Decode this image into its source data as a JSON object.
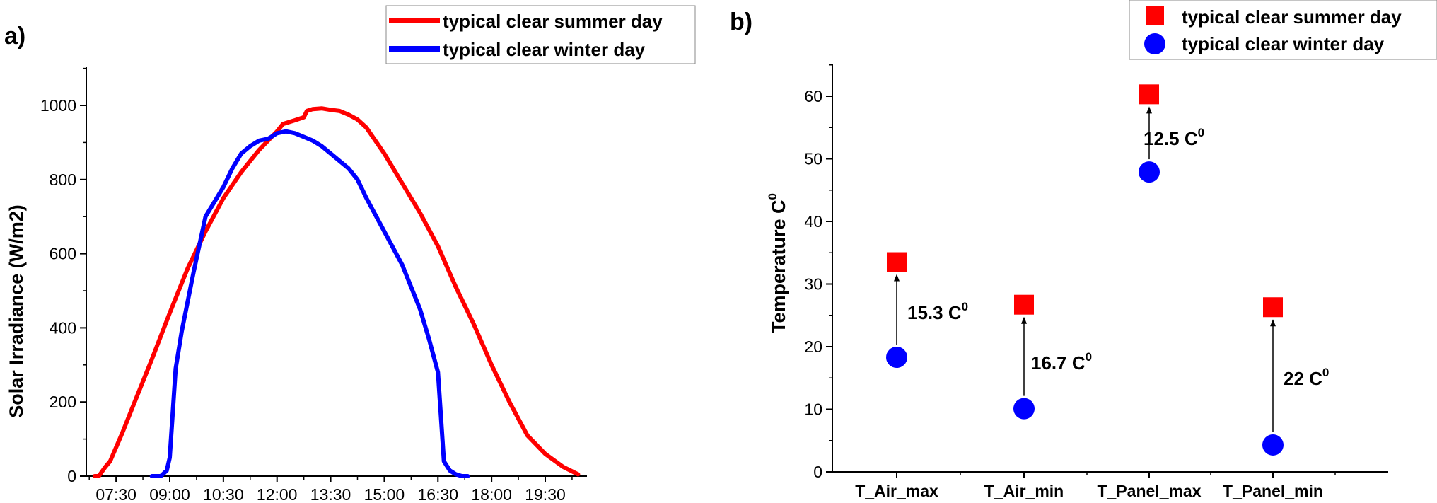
{
  "colors": {
    "summer": "#ff0000",
    "winter": "#0000ff",
    "axis": "#000000",
    "arrow": "#000000"
  },
  "chart_data": [
    {
      "panel_label": "a)",
      "type": "line",
      "ylabel": "Solar Irradiance (W/m2)",
      "xlabel": "",
      "ylim": [
        0,
        1100
      ],
      "y_ticks": [
        0,
        200,
        400,
        600,
        800,
        1000
      ],
      "x_ticks": [
        "07:30",
        "09:00",
        "10:30",
        "12:00",
        "13:30",
        "15:00",
        "16:30",
        "18:00",
        "19:30"
      ],
      "xlim": [
        "06:40",
        "20:40"
      ],
      "legend_position": "top-right",
      "series": [
        {
          "name": "typical clear summer day",
          "color": "summer",
          "x": [
            "06:54",
            "07:01",
            "07:12",
            "07:20",
            "07:40",
            "08:00",
            "08:30",
            "09:00",
            "09:30",
            "10:00",
            "10:30",
            "11:00",
            "11:30",
            "12:00",
            "12:10",
            "12:30",
            "12:45",
            "12:50",
            "13:00",
            "13:15",
            "13:30",
            "13:45",
            "14:00",
            "14:15",
            "14:30",
            "14:45",
            "15:00",
            "15:30",
            "16:00",
            "16:30",
            "17:00",
            "17:30",
            "18:00",
            "18:30",
            "19:00",
            "19:30",
            "20:00",
            "20:25"
          ],
          "y": [
            0,
            0,
            25,
            40,
            115,
            195,
            315,
            440,
            560,
            660,
            750,
            820,
            880,
            930,
            950,
            960,
            968,
            985,
            990,
            992,
            988,
            985,
            975,
            962,
            940,
            905,
            870,
            790,
            710,
            620,
            510,
            410,
            300,
            200,
            110,
            60,
            25,
            5
          ]
        },
        {
          "name": "typical clear winter day",
          "color": "winter",
          "x": [
            "08:30",
            "08:45",
            "08:55",
            "09:00",
            "09:10",
            "09:20",
            "09:30",
            "09:40",
            "10:00",
            "10:30",
            "10:45",
            "11:00",
            "11:15",
            "11:30",
            "11:45",
            "12:00",
            "12:15",
            "12:30",
            "12:45",
            "13:00",
            "13:15",
            "13:30",
            "13:45",
            "14:00",
            "14:15",
            "14:30",
            "15:00",
            "15:30",
            "16:00",
            "16:15",
            "16:30",
            "16:40",
            "16:50",
            "17:00",
            "17:10",
            "17:20"
          ],
          "y": [
            0,
            0,
            15,
            50,
            290,
            390,
            470,
            550,
            700,
            780,
            830,
            870,
            890,
            905,
            910,
            925,
            930,
            925,
            915,
            905,
            890,
            870,
            850,
            830,
            800,
            750,
            660,
            570,
            450,
            370,
            280,
            40,
            15,
            5,
            0,
            0
          ]
        }
      ]
    },
    {
      "panel_label": "b)",
      "type": "scatter",
      "ylabel": "Temperature C",
      "ylabel_sup": "0",
      "xlabel": "",
      "ylim": [
        0,
        65
      ],
      "y_ticks": [
        0,
        10,
        20,
        30,
        40,
        50,
        60
      ],
      "categories": [
        "T_Air_max",
        "T_Air_min",
        "T_Panel_max",
        "T_Panel_min"
      ],
      "legend_position": "top-right",
      "series": [
        {
          "name": "typical clear summer day",
          "color": "summer",
          "marker": "square",
          "values": [
            33.5,
            26.7,
            60.3,
            26.3
          ]
        },
        {
          "name": "typical clear winter day",
          "color": "winter",
          "marker": "circle",
          "values": [
            18.3,
            10.1,
            47.9,
            4.3
          ]
        }
      ],
      "annotations": [
        {
          "text": "15.3 C",
          "sup": "0",
          "category": "T_Air_max"
        },
        {
          "text": "16.7 C",
          "sup": "0",
          "category": "T_Air_min"
        },
        {
          "text": "12.5 C",
          "sup": "0",
          "category": "T_Panel_max"
        },
        {
          "text": "22 C",
          "sup": "0",
          "category": "T_Panel_min"
        }
      ]
    }
  ]
}
